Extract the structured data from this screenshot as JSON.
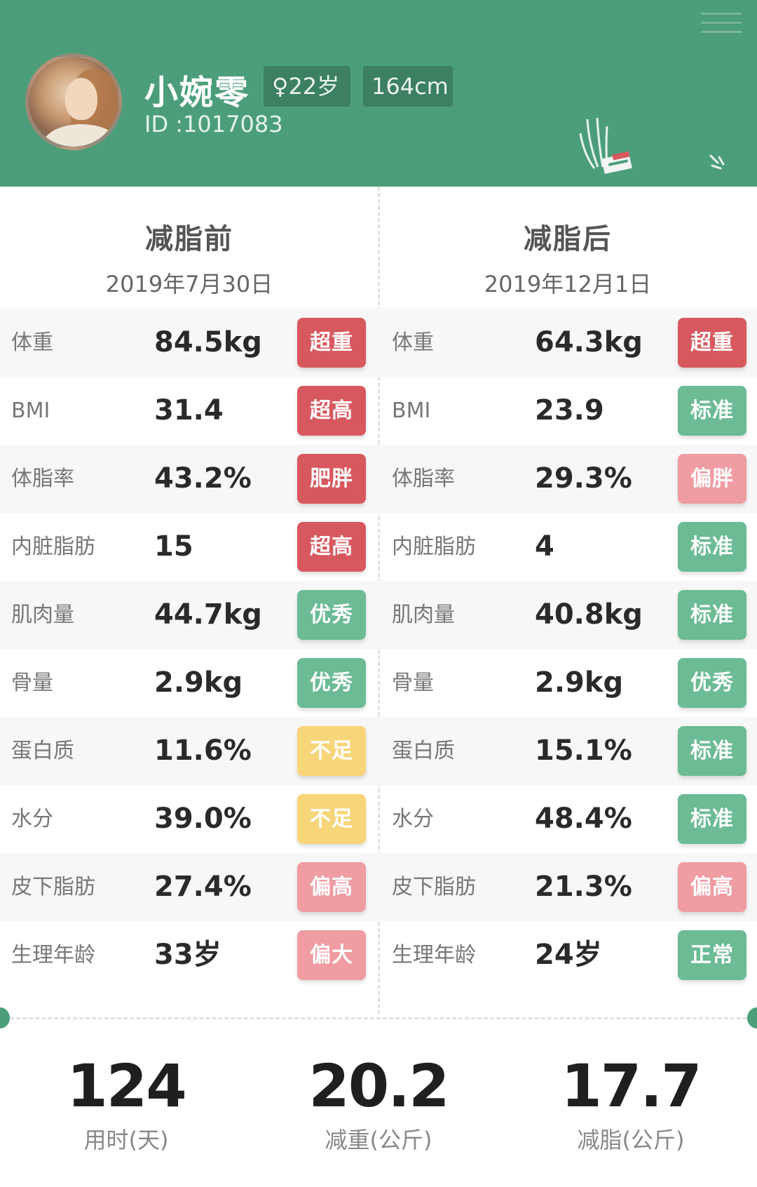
{
  "profile": {
    "name": "小婉零",
    "age": "♀22岁",
    "height": "164cm",
    "id": "ID :1017083"
  },
  "before": {
    "title": "减脂前",
    "date": "2019年7月30日"
  },
  "after": {
    "title": "减脂后",
    "date": "2019年12月1日"
  },
  "rows": [
    {
      "label": "体重",
      "before": {
        "value": "84.5kg",
        "tag": "超重",
        "color": "#d8585f"
      },
      "after": {
        "value": "64.3kg",
        "tag": "超重",
        "color": "#d8585f"
      }
    },
    {
      "label": "BMI",
      "before": {
        "value": "31.4",
        "tag": "超高",
        "color": "#d8585f"
      },
      "after": {
        "value": "23.9",
        "tag": "标准",
        "color": "#6cbb94"
      }
    },
    {
      "label": "体脂率",
      "before": {
        "value": "43.2%",
        "tag": "肥胖",
        "color": "#d8585f"
      },
      "after": {
        "value": "29.3%",
        "tag": "偏胖",
        "color": "#ef9ca2"
      }
    },
    {
      "label": "内脏脂肪",
      "before": {
        "value": "15",
        "tag": "超高",
        "color": "#d8585f"
      },
      "after": {
        "value": "4",
        "tag": "标准",
        "color": "#6cbb94"
      }
    },
    {
      "label": "肌肉量",
      "before": {
        "value": "44.7kg",
        "tag": "优秀",
        "color": "#6cbb94"
      },
      "after": {
        "value": "40.8kg",
        "tag": "标准",
        "color": "#6cbb94"
      }
    },
    {
      "label": "骨量",
      "before": {
        "value": "2.9kg",
        "tag": "优秀",
        "color": "#6cbb94"
      },
      "after": {
        "value": "2.9kg",
        "tag": "优秀",
        "color": "#6cbb94"
      }
    },
    {
      "label": "蛋白质",
      "before": {
        "value": "11.6%",
        "tag": "不足",
        "color": "#f7d67a"
      },
      "after": {
        "value": "15.1%",
        "tag": "标准",
        "color": "#6cbb94"
      }
    },
    {
      "label": "水分",
      "before": {
        "value": "39.0%",
        "tag": "不足",
        "color": "#f7d67a"
      },
      "after": {
        "value": "48.4%",
        "tag": "标准",
        "color": "#6cbb94"
      }
    },
    {
      "label": "皮下脂肪",
      "before": {
        "value": "27.4%",
        "tag": "偏高",
        "color": "#ef9ca2"
      },
      "after": {
        "value": "21.3%",
        "tag": "偏高",
        "color": "#ef9ca2"
      }
    },
    {
      "label": "生理年龄",
      "before": {
        "value": "33岁",
        "tag": "偏大",
        "color": "#ef9ca2"
      },
      "after": {
        "value": "24岁",
        "tag": "正常",
        "color": "#6cbb94"
      }
    }
  ],
  "summary": [
    {
      "value": "124",
      "caption": "用时(天)"
    },
    {
      "value": "20.2",
      "caption": "减重(公斤)"
    },
    {
      "value": "17.7",
      "caption": "减脂(公斤)"
    }
  ],
  "colors": {
    "brand_green": "#4c9e7a",
    "tag_red": "#d8585f",
    "tag_pink": "#ef9ca2",
    "tag_green": "#6cbb94",
    "tag_yellow": "#f7d67a"
  }
}
